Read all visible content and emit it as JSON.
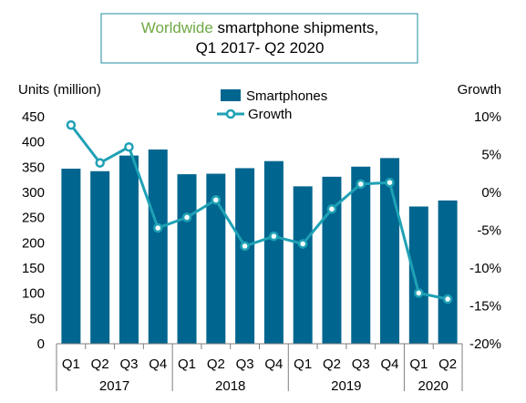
{
  "chart_data": {
    "type": "bar",
    "title_highlight": "Worldwide",
    "title_rest": " smartphone shipments,",
    "title_line2": "Q1 2017- Q2 2020",
    "ylabel_left": "Units (million)",
    "ylabel_right": "Growth",
    "categories": [
      "Q1",
      "Q2",
      "Q3",
      "Q4",
      "Q1",
      "Q2",
      "Q3",
      "Q4",
      "Q1",
      "Q2",
      "Q3",
      "Q4",
      "Q1",
      "Q2"
    ],
    "years": [
      {
        "label": "2017",
        "start": 0,
        "end": 3
      },
      {
        "label": "2018",
        "start": 4,
        "end": 7
      },
      {
        "label": "2019",
        "start": 8,
        "end": 11
      },
      {
        "label": "2020",
        "start": 12,
        "end": 13
      }
    ],
    "series": [
      {
        "name": "Smartphones",
        "axis": "left",
        "kind": "bar",
        "values": [
          347,
          342,
          373,
          385,
          336,
          337,
          348,
          362,
          312,
          331,
          351,
          368,
          272,
          284
        ]
      },
      {
        "name": "Growth",
        "axis": "right",
        "kind": "line",
        "values": [
          8.9,
          3.9,
          6.0,
          -4.7,
          -3.3,
          -1.0,
          -7.1,
          -5.8,
          -6.8,
          -2.2,
          1.1,
          1.3,
          -13.3,
          -14.1
        ]
      }
    ],
    "ylim_left": [
      0,
      450
    ],
    "yticks_left": [
      0,
      50,
      100,
      150,
      200,
      250,
      300,
      350,
      400,
      450
    ],
    "ylim_right": [
      -20,
      10
    ],
    "yticks_right": [
      {
        "value": 10,
        "label": "10%"
      },
      {
        "value": 5,
        "label": "5%"
      },
      {
        "value": 0,
        "label": "0%"
      },
      {
        "value": -5,
        "label": "-5%"
      },
      {
        "value": -10,
        "label": "-10%"
      },
      {
        "value": -15,
        "label": "-15%"
      },
      {
        "value": -20,
        "label": "-20%"
      }
    ],
    "grid": false,
    "legend_position": "top-center",
    "colors": {
      "bar": "#00668f",
      "line": "#1fa1b5",
      "marker_fill": "#ffffff",
      "title_highlight": "#70a845",
      "title_border": "#1f8da0",
      "axis": "#7f7f7f"
    }
  }
}
